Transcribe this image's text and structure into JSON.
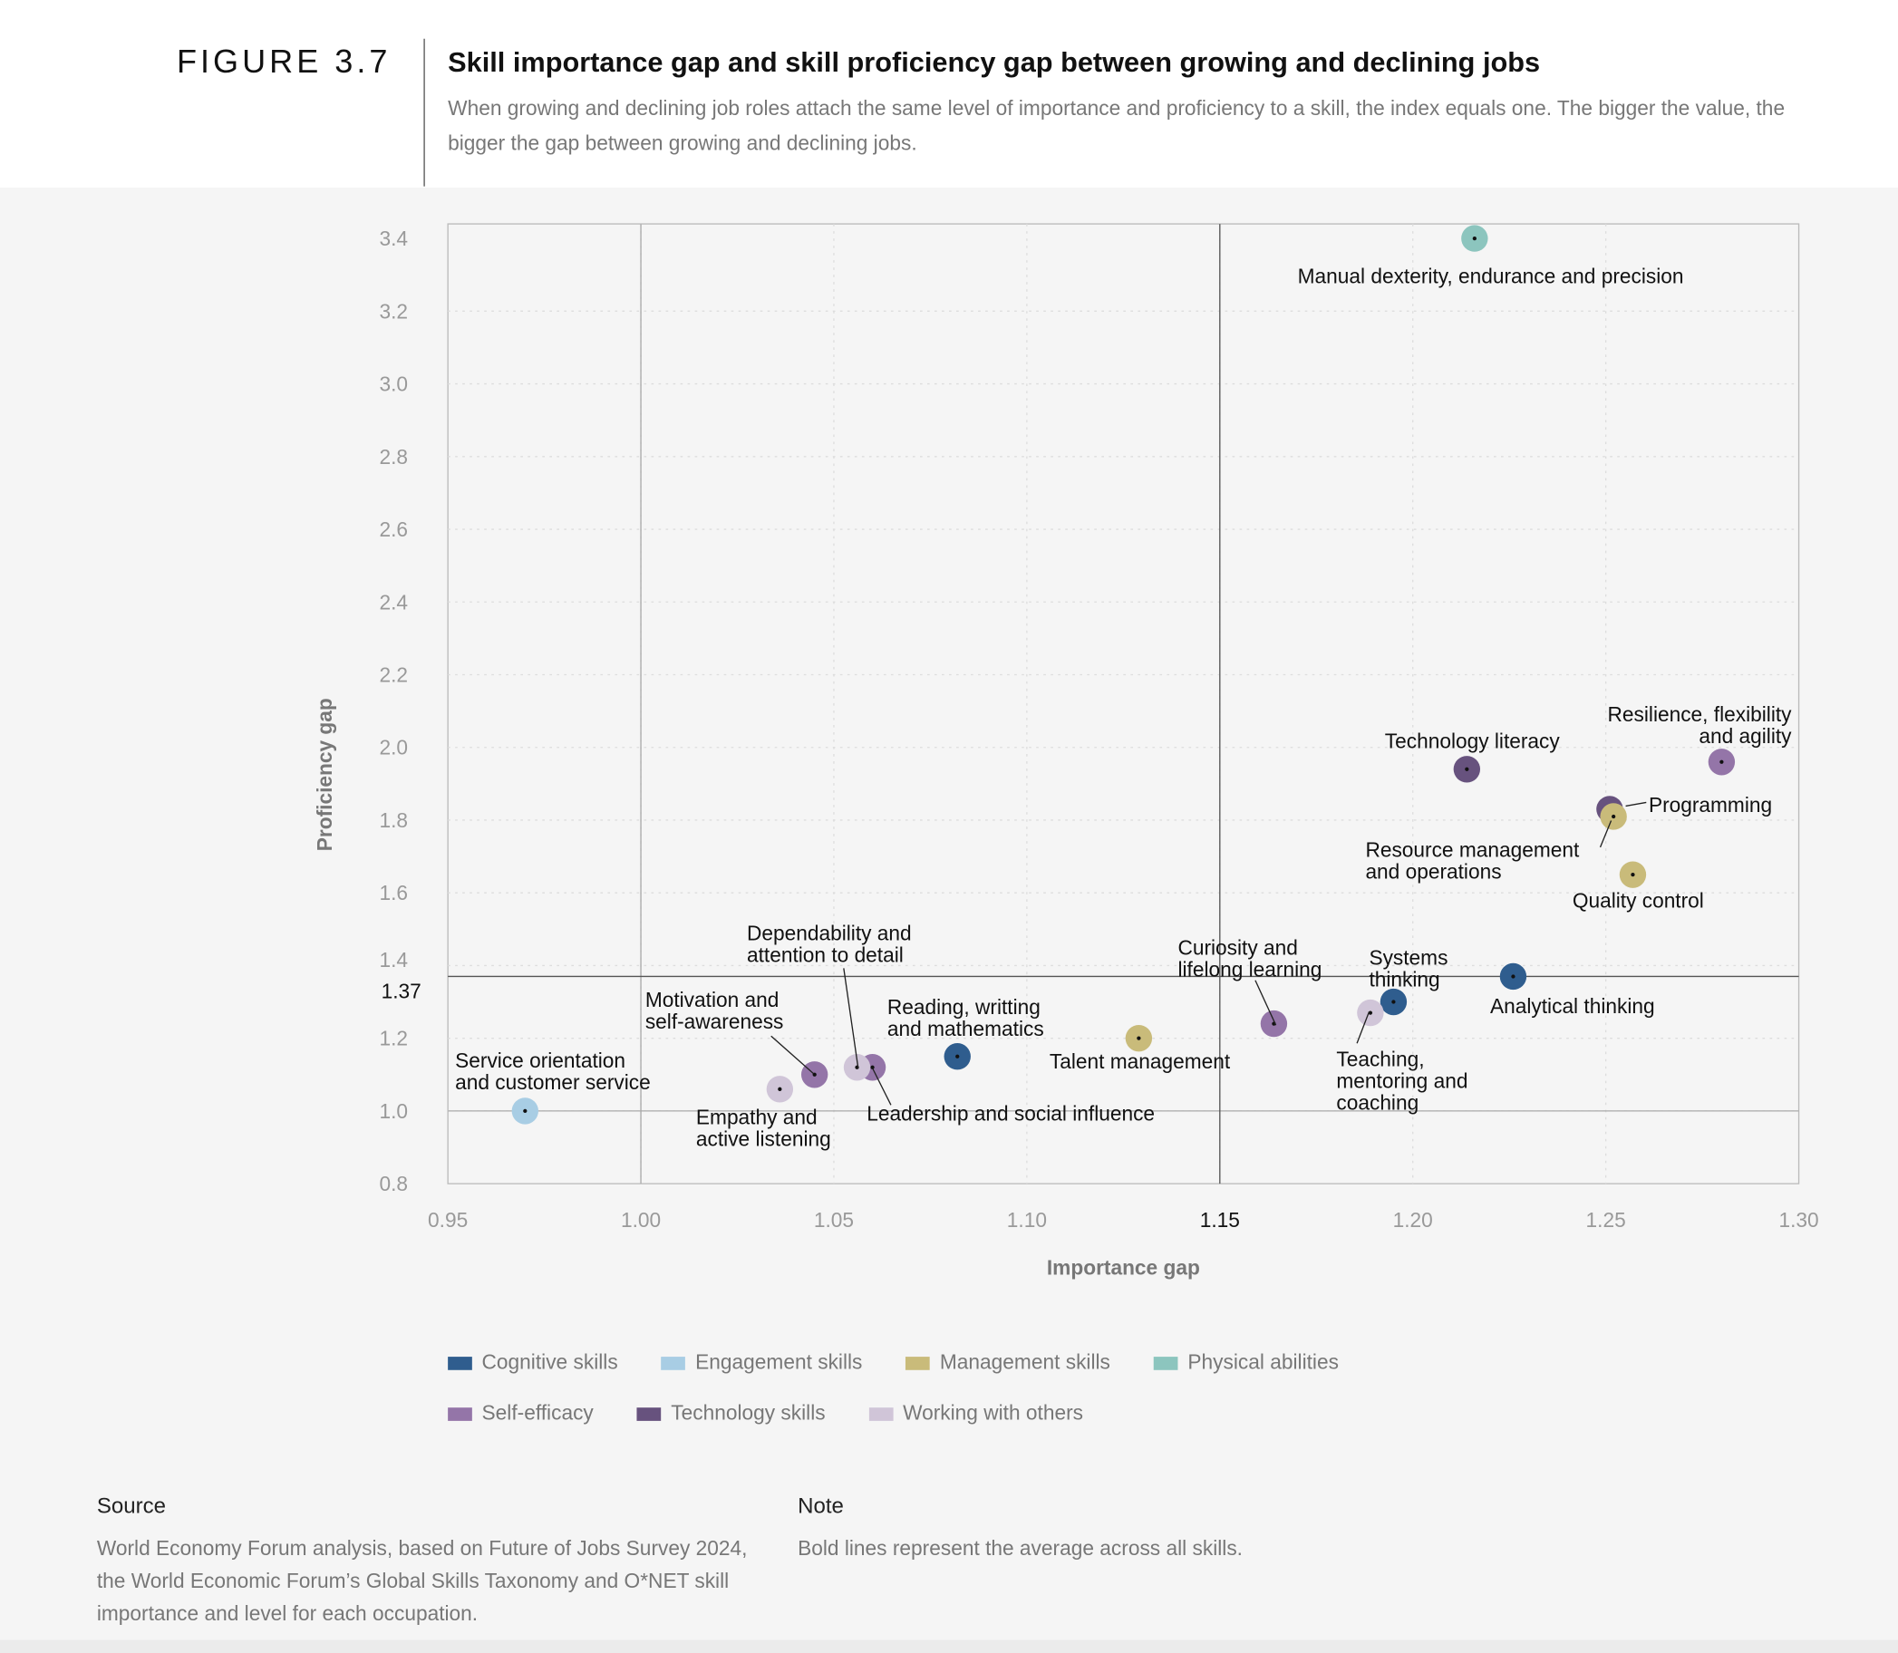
{
  "header": {
    "figure_label": "FIGURE 3.7",
    "title": "Skill importance gap and skill proficiency gap between growing and declining jobs",
    "subtitle": "When growing and declining job roles attach the same level of importance and proficiency to a skill, the index equals one. The bigger the value, the bigger the gap between growing and declining jobs."
  },
  "chart_data": {
    "type": "scatter",
    "xlabel": "Importance gap",
    "ylabel": "Proficiency gap",
    "xlim": [
      0.95,
      1.3
    ],
    "ylim": [
      0.8,
      3.44
    ],
    "x_ticks": [
      "0.95",
      "1.00",
      "1.05",
      "1.10",
      "1.15",
      "1.20",
      "1.25",
      "1.30"
    ],
    "y_ticks": [
      "0.8",
      "1.0",
      "1.2",
      "1.4",
      "1.6",
      "1.8",
      "2.0",
      "2.2",
      "2.4",
      "2.6",
      "2.8",
      "3.0",
      "3.2",
      "3.4"
    ],
    "grid": "dotted",
    "reference_lines": {
      "x_average": 1.15,
      "y_average": 1.37,
      "x_average_label": "1.15",
      "y_average_label": "1.37",
      "x_one": 1.0,
      "y_one": 1.0
    },
    "legend_placement": "bottom",
    "categories": [
      {
        "name": "Cognitive skills",
        "color": "#2f5d8e"
      },
      {
        "name": "Engagement skills",
        "color": "#a8cde4"
      },
      {
        "name": "Management skills",
        "color": "#c9bb7a"
      },
      {
        "name": "Physical abilities",
        "color": "#8cc5be"
      },
      {
        "name": "Self-efficacy",
        "color": "#9475a8"
      },
      {
        "name": "Technology skills",
        "color": "#67527e"
      },
      {
        "name": "Working with others",
        "color": "#d0c5d8"
      }
    ],
    "points": [
      {
        "label_lines": [
          "Manual dexterity, endurance and precision"
        ],
        "category": "Physical abilities",
        "x": 1.216,
        "y": 3.4
      },
      {
        "label_lines": [
          "Technology literacy"
        ],
        "category": "Technology skills",
        "x": 1.214,
        "y": 1.94
      },
      {
        "label_lines": [
          "Resilience, flexibility",
          "and agility"
        ],
        "category": "Self-efficacy",
        "x": 1.28,
        "y": 1.96
      },
      {
        "label_lines": [
          "Programming"
        ],
        "category": "Technology skills",
        "x": 1.251,
        "y": 1.83
      },
      {
        "label_lines": [
          "Resource management",
          "and operations"
        ],
        "category": "Management skills",
        "x": 1.252,
        "y": 1.81
      },
      {
        "label_lines": [
          "Quality control"
        ],
        "category": "Management skills",
        "x": 1.257,
        "y": 1.65
      },
      {
        "label_lines": [
          "Analytical thinking"
        ],
        "category": "Cognitive skills",
        "x": 1.226,
        "y": 1.37
      },
      {
        "label_lines": [
          "Systems",
          "thinking"
        ],
        "category": "Cognitive skills",
        "x": 1.195,
        "y": 1.3
      },
      {
        "label_lines": [
          "Teaching,",
          "mentoring and",
          "coaching"
        ],
        "category": "Working with others",
        "x": 1.189,
        "y": 1.27
      },
      {
        "label_lines": [
          "Curiosity and",
          "lifelong learning"
        ],
        "category": "Self-efficacy",
        "x": 1.164,
        "y": 1.24
      },
      {
        "label_lines": [
          "Talent management"
        ],
        "category": "Management skills",
        "x": 1.129,
        "y": 1.2
      },
      {
        "label_lines": [
          "Reading, writting",
          "and mathematics"
        ],
        "category": "Cognitive skills",
        "x": 1.082,
        "y": 1.15
      },
      {
        "label_lines": [
          "Leadership and social influence"
        ],
        "category": "Self-efficacy",
        "x": 1.06,
        "y": 1.12
      },
      {
        "label_lines": [
          "Dependability and",
          "attention to detail"
        ],
        "category": "Working with others",
        "x": 1.056,
        "y": 1.12
      },
      {
        "label_lines": [
          "Motivation and",
          "self-awareness"
        ],
        "category": "Self-efficacy",
        "x": 1.045,
        "y": 1.1
      },
      {
        "label_lines": [
          "Empathy and",
          "active listening"
        ],
        "category": "Working with others",
        "x": 1.036,
        "y": 1.06
      },
      {
        "label_lines": [
          "Service orientation",
          "and customer service"
        ],
        "category": "Engagement skills",
        "x": 0.97,
        "y": 1.0
      }
    ]
  },
  "footer": {
    "source_heading": "Source",
    "source_text": "World Economy Forum analysis, based on Future of Jobs Survey 2024, the World Economic Forum’s Global Skills Taxonomy and O*NET skill importance and level for each occupation.",
    "note_heading": "Note",
    "note_text": "Bold lines represent the average across all skills."
  }
}
